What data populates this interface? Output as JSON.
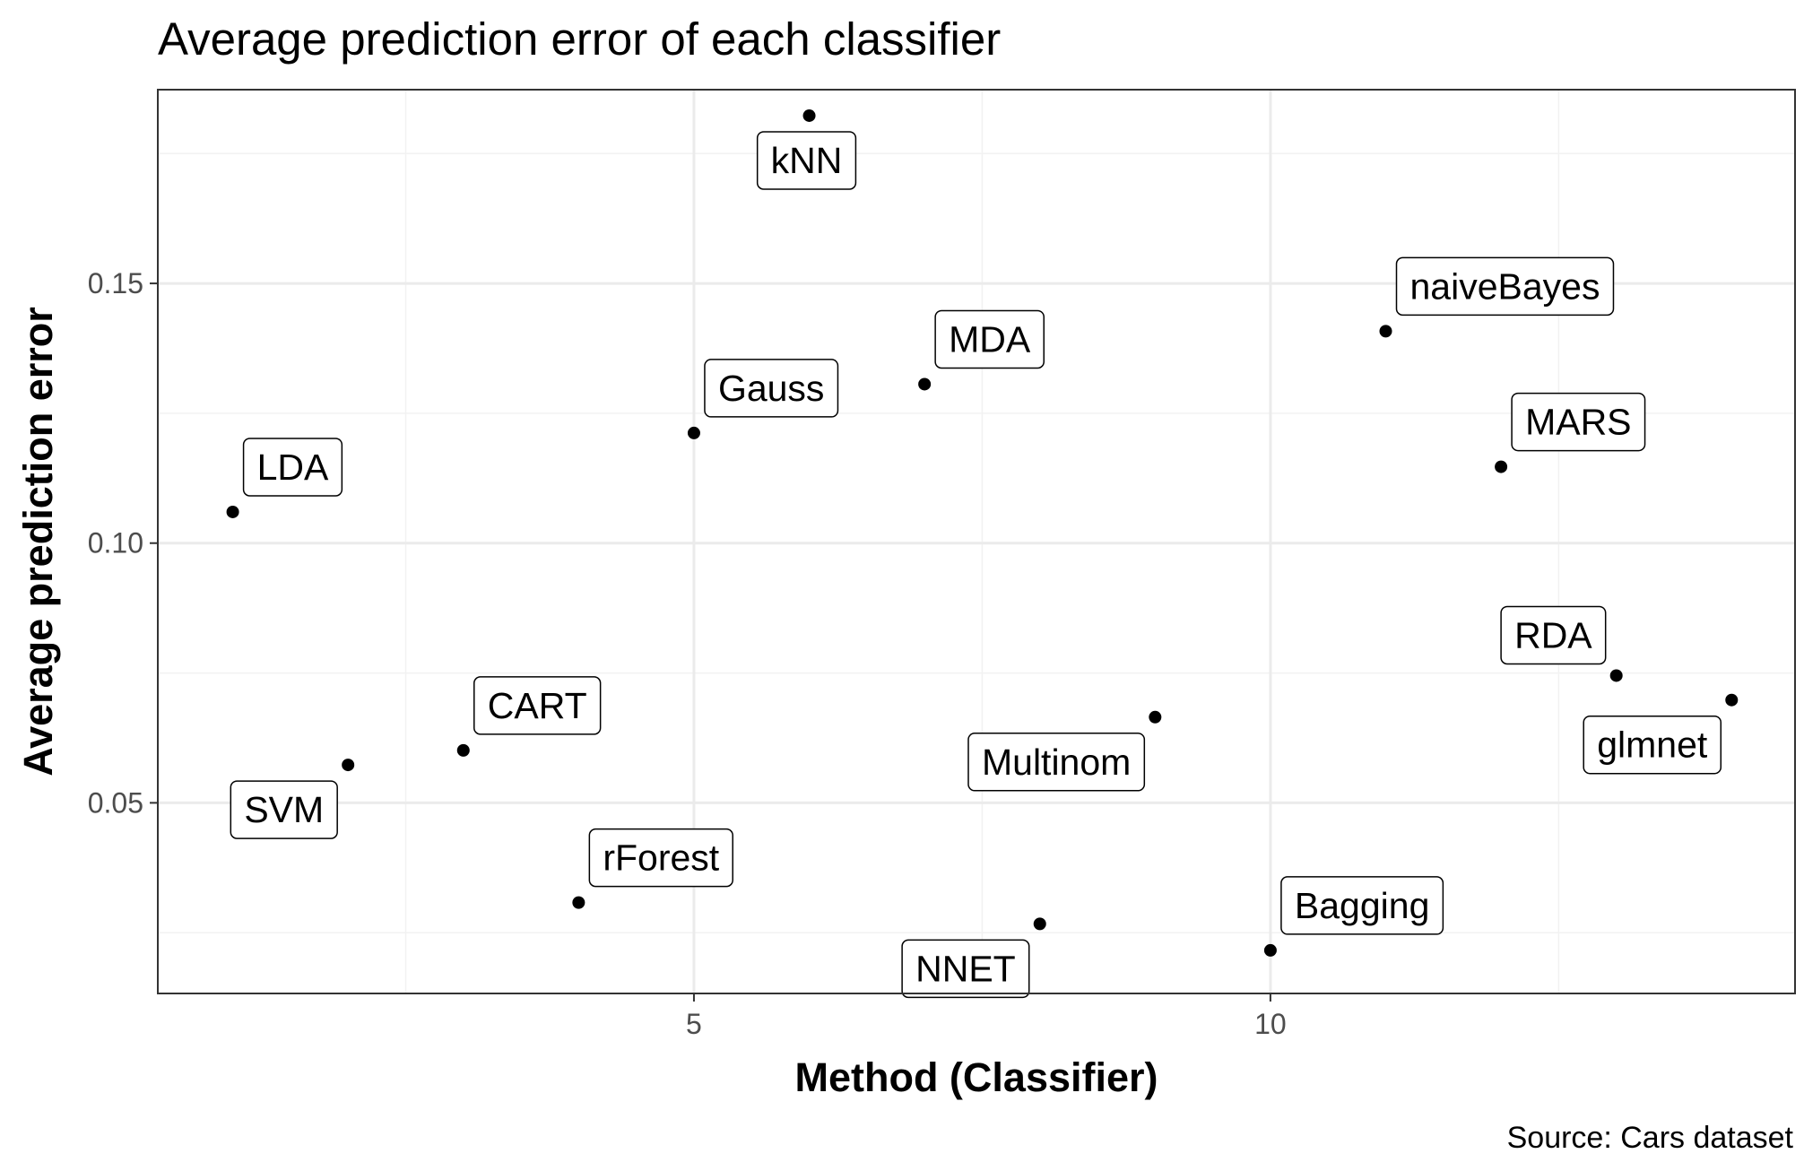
{
  "chart_data": {
    "type": "scatter",
    "title": "Average prediction error of each classifier",
    "xlabel": "Method (Classifier)",
    "ylabel": "Average prediction error",
    "caption": "Source: Cars  dataset",
    "xlim": [
      0.35,
      14.55
    ],
    "ylim": [
      0.0133,
      0.1873
    ],
    "x_major_ticks": [
      5,
      10
    ],
    "x_tick_labels": [
      "5",
      "10"
    ],
    "x_minor_ticks": [
      2.5,
      7.5,
      12.5
    ],
    "y_major_ticks": [
      0.05,
      0.1,
      0.15
    ],
    "y_tick_labels": [
      "0.05",
      "0.10",
      "0.15"
    ],
    "y_minor_ticks": [
      0.025,
      0.075,
      0.125,
      0.175
    ],
    "grid": true,
    "point_color": "#000000",
    "points": [
      {
        "x": 1,
        "y": 0.106,
        "label": "LDA",
        "label_side": "above"
      },
      {
        "x": 2,
        "y": 0.0573,
        "label": "SVM",
        "label_side": "below"
      },
      {
        "x": 3,
        "y": 0.0601,
        "label": "CART",
        "label_side": "above"
      },
      {
        "x": 4,
        "y": 0.0308,
        "label": "rForest",
        "label_side": "above"
      },
      {
        "x": 5,
        "y": 0.1212,
        "label": "Gauss",
        "label_side": "above"
      },
      {
        "x": 6,
        "y": 0.1823,
        "label": "kNN",
        "label_side": "below"
      },
      {
        "x": 7,
        "y": 0.1306,
        "label": "MDA",
        "label_side": "above"
      },
      {
        "x": 8,
        "y": 0.0267,
        "label": "NNET",
        "label_side": "below"
      },
      {
        "x": 9,
        "y": 0.0665,
        "label": "Multinom",
        "label_side": "below"
      },
      {
        "x": 10,
        "y": 0.0216,
        "label": "Bagging",
        "label_side": "above"
      },
      {
        "x": 11,
        "y": 0.1408,
        "label": "naiveBayes",
        "label_side": "above"
      },
      {
        "x": 12,
        "y": 0.1147,
        "label": "MARS",
        "label_side": "above"
      },
      {
        "x": 13,
        "y": 0.0745,
        "label": "RDA",
        "label_side": "above"
      },
      {
        "x": 14,
        "y": 0.0698,
        "label": "glmnet",
        "label_side": "below"
      }
    ]
  }
}
